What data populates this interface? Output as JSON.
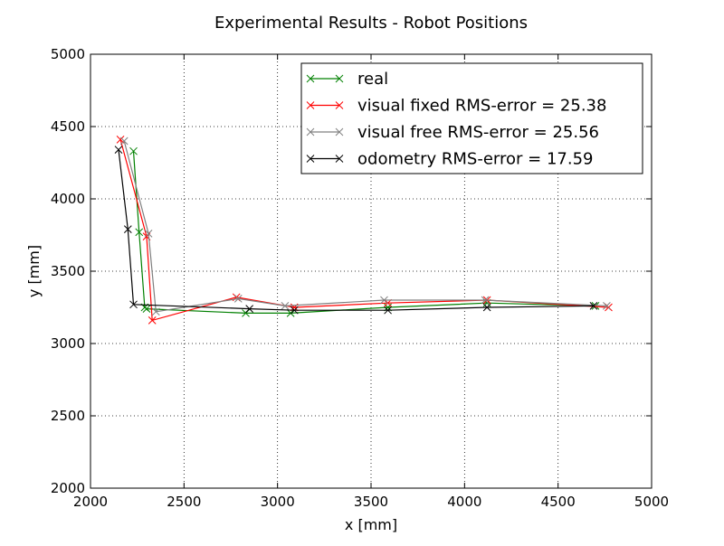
{
  "chart_data": {
    "type": "line",
    "title": "Experimental Results - Robot Positions",
    "xlabel": "x [mm]",
    "ylabel": "y [mm]",
    "xlim": [
      2000,
      5000
    ],
    "ylim": [
      2000,
      5000
    ],
    "xticks": [
      2000,
      2500,
      3000,
      3500,
      4000,
      4500,
      5000
    ],
    "yticks": [
      2000,
      2500,
      3000,
      3500,
      4000,
      4500,
      5000
    ],
    "grid": true,
    "legend_position": "top-right",
    "marker": "x",
    "series": [
      {
        "name": "real",
        "color": "#008000",
        "points": [
          [
            4700,
            3260
          ],
          [
            4120,
            3280
          ],
          [
            3590,
            3250
          ],
          [
            3070,
            3210
          ],
          [
            2830,
            3210
          ],
          [
            2300,
            3240
          ],
          [
            2290,
            3250
          ],
          [
            2260,
            3770
          ],
          [
            2230,
            4330
          ]
        ]
      },
      {
        "name": "visual fixed RMS-error = 25.38",
        "color": "#ff0000",
        "points": [
          [
            4770,
            3250
          ],
          [
            4120,
            3300
          ],
          [
            3590,
            3280
          ],
          [
            3090,
            3250
          ],
          [
            2780,
            3320
          ],
          [
            2330,
            3160
          ],
          [
            2300,
            3740
          ],
          [
            2160,
            4410
          ]
        ]
      },
      {
        "name": "visual free RMS-error = 25.56",
        "color": "#808080",
        "points": [
          [
            4760,
            3260
          ],
          [
            4110,
            3300
          ],
          [
            3570,
            3300
          ],
          [
            3040,
            3260
          ],
          [
            2790,
            3310
          ],
          [
            2350,
            3220
          ],
          [
            2310,
            3760
          ],
          [
            2180,
            4400
          ]
        ]
      },
      {
        "name": "odometry RMS-error = 17.59",
        "color": "#000000",
        "points": [
          [
            4690,
            3260
          ],
          [
            4120,
            3250
          ],
          [
            3590,
            3230
          ],
          [
            3090,
            3230
          ],
          [
            2850,
            3240
          ],
          [
            2230,
            3270
          ],
          [
            2200,
            3790
          ],
          [
            2150,
            4340
          ]
        ]
      }
    ]
  }
}
